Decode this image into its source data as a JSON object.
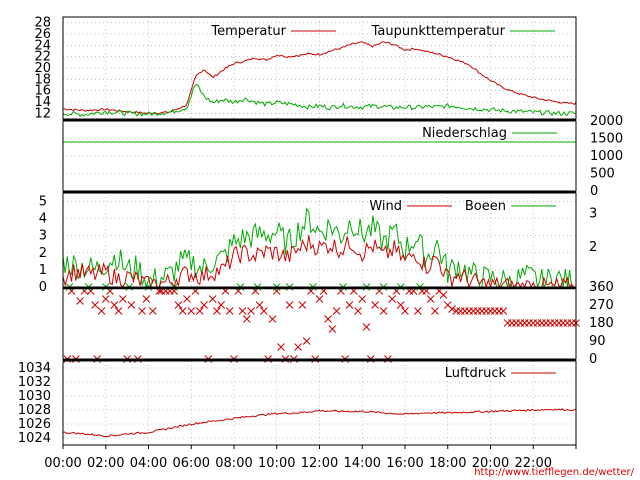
{
  "colors": {
    "temperature": "#cc0000",
    "dewpoint": "#00aa00",
    "precipitation": "#00aa00",
    "wind": "#cc0000",
    "gusts": "#00aa00",
    "direction_wind": "#cc0000",
    "direction_gusts": "#00aa00",
    "pressure": "#cc0000",
    "frame": "#000000",
    "grid": "#999999"
  },
  "x_axis": {
    "ticks": [
      "00:00",
      "02:00",
      "04:00",
      "06:00",
      "08:00",
      "10:00",
      "12:00",
      "14:00",
      "16:00",
      "18:00",
      "20:00",
      "22:00"
    ]
  },
  "credit": "http://www.tiefflegen.de/wetter/",
  "chart_data": [
    {
      "id": "temperature",
      "type": "line",
      "x_unit": "hour",
      "xlim": [
        0,
        24
      ],
      "ylim": [
        11,
        29
      ],
      "y_ticks": [
        "12",
        "14",
        "16",
        "18",
        "20",
        "22",
        "24",
        "26",
        "28"
      ],
      "grid": true,
      "legend": "top",
      "series": [
        {
          "name": "Temperatur",
          "x": [
            0,
            1,
            2,
            3,
            4,
            5,
            5.8,
            6.2,
            6.6,
            7,
            7.5,
            8,
            8.5,
            9,
            9.5,
            10,
            10.5,
            11,
            11.5,
            12,
            12.5,
            13,
            13.5,
            14,
            14.5,
            15,
            15.5,
            16,
            16.5,
            17,
            17.5,
            18,
            18.5,
            19,
            19.5,
            20,
            20.5,
            21,
            21.5,
            22,
            22.5,
            23,
            23.5,
            24
          ],
          "y": [
            12.8,
            12.5,
            12.7,
            12.3,
            12.0,
            12.2,
            13.5,
            18.5,
            19.8,
            18.3,
            19.7,
            20.8,
            21.2,
            21.8,
            21.4,
            22.3,
            22.0,
            22.2,
            22.5,
            22.4,
            23.0,
            23.5,
            24.2,
            24.5,
            23.8,
            24.6,
            24.1,
            23.2,
            23.4,
            22.9,
            22.5,
            22.0,
            21.3,
            20.6,
            19.1,
            17.8,
            16.7,
            15.9,
            15.3,
            14.8,
            14.4,
            14.1,
            13.8,
            13.7
          ]
        },
        {
          "name": "Taupunkttemperatur",
          "x": [
            0,
            1,
            2,
            3,
            4,
            5,
            5.8,
            6.2,
            6.6,
            7,
            7.5,
            8,
            8.5,
            9,
            9.5,
            10,
            10.5,
            11,
            11.5,
            12,
            12.5,
            13,
            13.5,
            14,
            14.5,
            15,
            15.5,
            16,
            16.5,
            17,
            17.5,
            18,
            18.5,
            19,
            19.5,
            20,
            20.5,
            21,
            21.5,
            22,
            22.5,
            23,
            23.5,
            24
          ],
          "y": [
            12.0,
            11.8,
            12.3,
            12.0,
            11.9,
            12.2,
            13.0,
            17.3,
            15.0,
            13.9,
            14.4,
            14.0,
            14.6,
            14.0,
            13.6,
            13.9,
            13.7,
            13.5,
            13.1,
            13.3,
            13.0,
            13.4,
            13.2,
            13.1,
            13.3,
            13.2,
            13.0,
            13.1,
            13.0,
            13.2,
            13.1,
            13.3,
            13.2,
            12.9,
            12.8,
            12.6,
            12.5,
            12.4,
            12.3,
            12.2,
            12.1,
            12.0,
            12.0,
            12.0
          ]
        }
      ]
    },
    {
      "id": "precipitation",
      "type": "line",
      "x_unit": "hour",
      "xlim": [
        0,
        24
      ],
      "ylim": [
        0,
        2000
      ],
      "y_ticks": [
        "0",
        "500",
        "1000",
        "1500",
        "2000"
      ],
      "grid": true,
      "legend": "top-right",
      "series": [
        {
          "name": "Niederschlag",
          "x": [
            0,
            24
          ],
          "y": [
            1400,
            1400
          ]
        }
      ]
    },
    {
      "id": "wind",
      "type": "line",
      "x_unit": "hour",
      "xlim": [
        0,
        24
      ],
      "ylim": [
        0,
        5.5
      ],
      "y_ticks_left": [
        "0",
        "1",
        "2",
        "3",
        "4",
        "5"
      ],
      "y_ticks_right": [
        "2",
        "3"
      ],
      "grid": true,
      "legend": "top",
      "series": [
        {
          "name": "Wind",
          "x": [
            0,
            0.5,
            1,
            1.5,
            2,
            2.5,
            3,
            3.5,
            4,
            4.5,
            5,
            5.5,
            6,
            6.5,
            7,
            7.5,
            8,
            8.5,
            9,
            9.5,
            10,
            10.5,
            11,
            11.5,
            12,
            12.5,
            13,
            13.5,
            14,
            14.5,
            15,
            15.5,
            16,
            16.5,
            17,
            17.5,
            18,
            18.5,
            19,
            19.5,
            20,
            20.5,
            21,
            21.5,
            22,
            22.5,
            23,
            23.5,
            24
          ],
          "y": [
            0.6,
            0.9,
            0.8,
            0.7,
            0.9,
            0.5,
            0.6,
            0.4,
            0.1,
            0.2,
            0.3,
            0.7,
            0.8,
            0.6,
            0.9,
            1.0,
            1.8,
            2.0,
            1.8,
            2.1,
            2.0,
            1.7,
            2.2,
            2.6,
            2.3,
            2.5,
            2.2,
            2.6,
            2.0,
            2.4,
            1.8,
            2.2,
            1.5,
            2.0,
            1.2,
            1.7,
            0.5,
            0.7,
            0.4,
            0.2,
            0.1,
            0.1,
            0.0,
            0.0,
            0.1,
            0.0,
            0.0,
            0.0,
            0.0
          ]
        },
        {
          "name": "Boeen",
          "x": [
            0,
            0.5,
            1,
            1.5,
            2,
            2.5,
            3,
            3.5,
            4,
            4.5,
            5,
            5.5,
            6,
            6.5,
            7,
            7.5,
            8,
            8.5,
            9,
            9.5,
            10,
            10.5,
            11,
            11.5,
            12,
            12.5,
            13,
            13.5,
            14,
            14.5,
            15,
            15.5,
            16,
            16.5,
            17,
            17.5,
            18,
            18.5,
            19,
            19.5,
            20,
            20.5,
            21,
            21.5,
            22,
            22.5,
            23,
            23.5,
            24
          ],
          "y": [
            1.5,
            1.3,
            1.2,
            1.0,
            1.4,
            1.8,
            1.0,
            1.1,
            0.3,
            0.5,
            0.7,
            1.4,
            1.5,
            1.0,
            1.5,
            1.7,
            2.6,
            2.9,
            3.0,
            3.1,
            3.2,
            2.5,
            3.3,
            4.0,
            3.2,
            3.6,
            3.0,
            3.9,
            3.1,
            3.4,
            2.6,
            3.2,
            2.2,
            2.9,
            1.7,
            2.5,
            0.9,
            1.3,
            0.8,
            0.5,
            0.5,
            0.4,
            0.2,
            0.6,
            0.5,
            0.2,
            0.6,
            0.3,
            0.4
          ]
        }
      ]
    },
    {
      "id": "wind_direction",
      "type": "scatter",
      "x_unit": "hour",
      "xlim": [
        0,
        24
      ],
      "ylim": [
        0,
        360
      ],
      "y_ticks": [
        "0",
        "90",
        "180",
        "270",
        "360"
      ],
      "grid": false,
      "series": [
        {
          "name": "direction_wind",
          "points": [
            [
              0.2,
              0
            ],
            [
              0.4,
              340
            ],
            [
              0.6,
              0
            ],
            [
              0.8,
              290
            ],
            [
              1.0,
              340
            ],
            [
              1.3,
              340
            ],
            [
              1.5,
              270
            ],
            [
              1.6,
              0
            ],
            [
              1.8,
              240
            ],
            [
              2.0,
              300
            ],
            [
              2.2,
              340
            ],
            [
              2.4,
              270
            ],
            [
              2.6,
              240
            ],
            [
              2.8,
              300
            ],
            [
              3.0,
              0
            ],
            [
              3.2,
              270
            ],
            [
              3.5,
              0
            ],
            [
              3.7,
              240
            ],
            [
              3.9,
              300
            ],
            [
              4.2,
              240
            ],
            [
              4.5,
              340
            ],
            [
              4.6,
              340
            ],
            [
              4.8,
              340
            ],
            [
              5.0,
              340
            ],
            [
              5.2,
              340
            ],
            [
              5.4,
              270
            ],
            [
              5.6,
              240
            ],
            [
              5.8,
              300
            ],
            [
              6.0,
              240
            ],
            [
              6.2,
              340
            ],
            [
              6.4,
              240
            ],
            [
              6.6,
              270
            ],
            [
              6.8,
              0
            ],
            [
              7.0,
              300
            ],
            [
              7.2,
              240
            ],
            [
              7.4,
              270
            ],
            [
              7.6,
              340
            ],
            [
              7.8,
              240
            ],
            [
              8.0,
              0
            ],
            [
              8.2,
              340
            ],
            [
              8.4,
              240
            ],
            [
              8.6,
              200
            ],
            [
              8.8,
              240
            ],
            [
              9.0,
              340
            ],
            [
              9.2,
              270
            ],
            [
              9.4,
              240
            ],
            [
              9.6,
              0
            ],
            [
              9.8,
              200
            ],
            [
              10.0,
              340
            ],
            [
              10.2,
              60
            ],
            [
              10.4,
              0
            ],
            [
              10.6,
              270
            ],
            [
              10.8,
              0
            ],
            [
              11.0,
              60
            ],
            [
              11.2,
              270
            ],
            [
              11.4,
              90
            ],
            [
              11.6,
              340
            ],
            [
              11.8,
              0
            ],
            [
              12.0,
              300
            ],
            [
              12.2,
              340
            ],
            [
              12.4,
              200
            ],
            [
              12.6,
              150
            ],
            [
              12.8,
              240
            ],
            [
              13.0,
              340
            ],
            [
              13.2,
              0
            ],
            [
              13.4,
              270
            ],
            [
              13.6,
              340
            ],
            [
              13.8,
              240
            ],
            [
              14.0,
              300
            ],
            [
              14.2,
              160
            ],
            [
              14.4,
              0
            ],
            [
              14.6,
              270
            ],
            [
              14.8,
              340
            ],
            [
              15.0,
              240
            ],
            [
              15.2,
              0
            ],
            [
              15.4,
              300
            ],
            [
              15.6,
              340
            ],
            [
              15.8,
              270
            ],
            [
              16.0,
              240
            ],
            [
              16.2,
              340
            ],
            [
              16.4,
              340
            ],
            [
              16.6,
              240
            ],
            [
              16.8,
              340
            ],
            [
              17.0,
              340
            ],
            [
              17.2,
              300
            ],
            [
              17.4,
              240
            ],
            [
              17.6,
              340
            ],
            [
              17.8,
              320
            ],
            [
              18.0,
              270
            ],
            [
              18.2,
              250
            ],
            [
              18.4,
              240
            ],
            [
              18.6,
              240
            ],
            [
              18.8,
              240
            ],
            [
              19.0,
              240
            ],
            [
              19.2,
              240
            ],
            [
              19.4,
              240
            ],
            [
              19.6,
              240
            ],
            [
              19.8,
              240
            ],
            [
              20.0,
              240
            ],
            [
              20.2,
              240
            ],
            [
              20.4,
              240
            ],
            [
              20.6,
              240
            ],
            [
              20.8,
              180
            ],
            [
              21.0,
              180
            ],
            [
              21.2,
              180
            ],
            [
              21.4,
              180
            ],
            [
              21.6,
              180
            ],
            [
              21.8,
              180
            ],
            [
              22.0,
              180
            ],
            [
              22.2,
              180
            ],
            [
              22.4,
              180
            ],
            [
              22.6,
              180
            ],
            [
              22.8,
              180
            ],
            [
              23.0,
              180
            ],
            [
              23.2,
              180
            ],
            [
              23.4,
              180
            ],
            [
              23.6,
              180
            ],
            [
              23.8,
              180
            ],
            [
              24.0,
              180
            ]
          ]
        },
        {
          "name": "direction_gusts",
          "points": [
            [
              0.3,
              360
            ],
            [
              1.2,
              360
            ],
            [
              2.0,
              360
            ],
            [
              3.1,
              360
            ],
            [
              4.0,
              360
            ],
            [
              5.2,
              360
            ],
            [
              8.3,
              360
            ],
            [
              9.1,
              360
            ],
            [
              10.0,
              360
            ],
            [
              10.6,
              360
            ],
            [
              11.7,
              360
            ],
            [
              13.1,
              360
            ],
            [
              14.2,
              360
            ],
            [
              15.0,
              360
            ],
            [
              15.8,
              360
            ],
            [
              16.7,
              360
            ]
          ]
        }
      ]
    },
    {
      "id": "pressure",
      "type": "line",
      "x_unit": "hour",
      "xlim": [
        0,
        24
      ],
      "ylim": [
        1023,
        1035
      ],
      "y_ticks": [
        "1024",
        "1026",
        "1028",
        "1030",
        "1032",
        "1034"
      ],
      "grid": true,
      "legend": "top-right",
      "series": [
        {
          "name": "Luftdruck",
          "x": [
            0,
            1,
            2,
            2.5,
            3,
            4,
            5,
            6,
            7,
            8,
            9,
            10,
            11,
            12,
            13,
            14,
            15,
            16,
            17,
            18,
            19,
            20,
            21,
            22,
            23,
            24
          ],
          "y": [
            1024.8,
            1024.6,
            1024.3,
            1024.4,
            1024.6,
            1024.8,
            1025.4,
            1026.0,
            1026.4,
            1026.8,
            1027.2,
            1027.5,
            1027.6,
            1027.9,
            1027.8,
            1027.8,
            1027.6,
            1027.4,
            1027.6,
            1027.6,
            1027.7,
            1027.8,
            1027.9,
            1028.0,
            1028.1,
            1028.0
          ]
        }
      ]
    }
  ]
}
